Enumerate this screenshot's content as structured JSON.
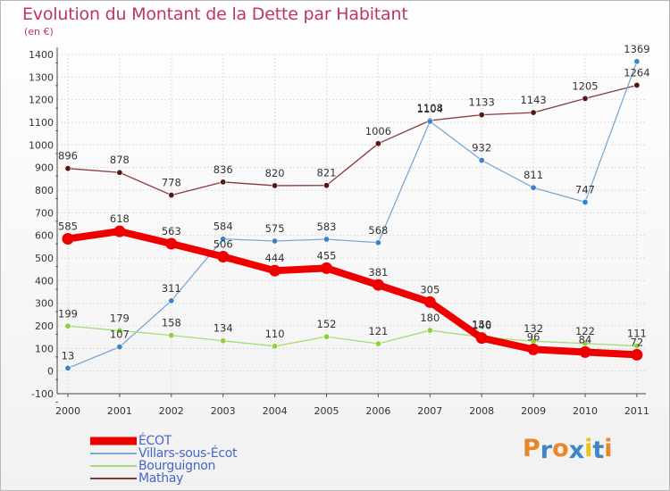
{
  "chart_data": {
    "type": "line",
    "title": "Evolution du Montant de la Dette par Habitant",
    "unit_label": "(en €)",
    "xlabel": "",
    "ylabel": "",
    "categories": [
      "2000",
      "2001",
      "2002",
      "2003",
      "2004",
      "2005",
      "2006",
      "2007",
      "2008",
      "2009",
      "2010",
      "2011"
    ],
    "ylim": [
      -100,
      1400
    ],
    "yticks": [
      -100,
      0,
      100,
      200,
      300,
      400,
      500,
      600,
      700,
      800,
      900,
      1000,
      1100,
      1200,
      1300,
      1400
    ],
    "grid": true,
    "series": [
      {
        "name": "ÉCOT",
        "color": "#ee0000",
        "values": [
          585,
          618,
          563,
          506,
          444,
          455,
          381,
          305,
          146,
          96,
          84,
          72
        ]
      },
      {
        "name": "Villars-sous-Écot",
        "color": "#4f8ec8",
        "values": [
          13,
          107,
          311,
          584,
          575,
          583,
          568,
          1104,
          932,
          811,
          747,
          1369
        ]
      },
      {
        "name": "Bourguignon",
        "color": "#99d65a",
        "values": [
          199,
          179,
          158,
          134,
          110,
          152,
          121,
          180,
          150,
          132,
          122,
          111
        ]
      },
      {
        "name": "Mathay",
        "color": "#6b1f1f",
        "values": [
          896,
          878,
          778,
          836,
          820,
          821,
          1006,
          1108,
          1133,
          1143,
          1205,
          1264
        ]
      }
    ]
  },
  "logo": {
    "text": "Proxiti",
    "letters": [
      "P",
      "r",
      "o",
      "x",
      "i",
      "t",
      "i"
    ],
    "colors": [
      "#e8862a",
      "#3f86c4",
      "#e8862a",
      "#3f86c4",
      "#e8c21a",
      "#3f86c4",
      "#e8862a"
    ]
  }
}
